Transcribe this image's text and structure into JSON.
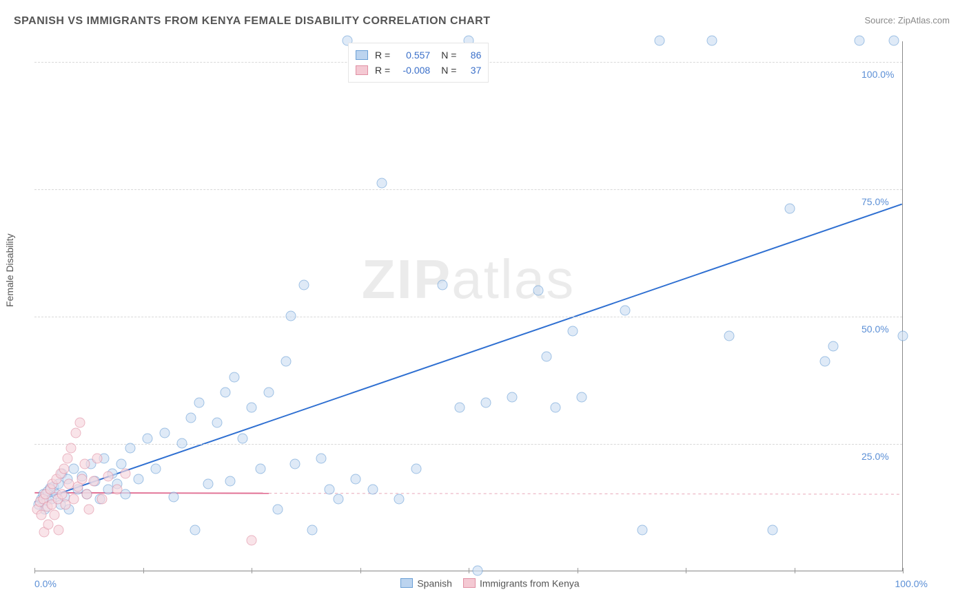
{
  "title": "SPANISH VS IMMIGRANTS FROM KENYA FEMALE DISABILITY CORRELATION CHART",
  "source_label": "Source: ",
  "source_site": "ZipAtlas.com",
  "ylabel": "Female Disability",
  "watermark_bold": "ZIP",
  "watermark_light": "atlas",
  "chart": {
    "type": "scatter",
    "xlim": [
      0,
      100
    ],
    "ylim": [
      0,
      104
    ],
    "x_tick_positions": [
      0,
      12.5,
      25,
      37.5,
      50,
      62.5,
      75,
      87.5,
      100
    ],
    "x_start_label": "0.0%",
    "x_end_label": "100.0%",
    "y_gridlines": [
      {
        "value": 25,
        "label": "25.0%"
      },
      {
        "value": 50,
        "label": "50.0%"
      },
      {
        "value": 75,
        "label": "75.0%"
      },
      {
        "value": 100,
        "label": "100.0%"
      }
    ],
    "background": "#ffffff",
    "grid_color": "#d8d8d8",
    "marker_radius": 7.5,
    "series": [
      {
        "name": "Spanish",
        "r_value": "0.557",
        "n_value": "86",
        "marker_fill": "#cfe0f4",
        "marker_stroke": "#6a9fd6",
        "swatch_fill": "#bcd4ef",
        "swatch_stroke": "#6a9fd6",
        "trend": {
          "x1": 0,
          "y1": 13.5,
          "x2": 100,
          "y2": 72,
          "color": "#2e6fd1",
          "width": 2,
          "dash": null
        },
        "points": [
          [
            0.5,
            13
          ],
          [
            0.8,
            14
          ],
          [
            1,
            15
          ],
          [
            1.2,
            12
          ],
          [
            1.4,
            13.8
          ],
          [
            1.5,
            15.5
          ],
          [
            1.8,
            16.2
          ],
          [
            2,
            14
          ],
          [
            2.2,
            16.5
          ],
          [
            2.5,
            15
          ],
          [
            2.8,
            17
          ],
          [
            3,
            13
          ],
          [
            3.2,
            19
          ],
          [
            3.5,
            14.5
          ],
          [
            3.8,
            18
          ],
          [
            4,
            12
          ],
          [
            4.5,
            20
          ],
          [
            5,
            16
          ],
          [
            5.5,
            18.5
          ],
          [
            6,
            15
          ],
          [
            6.5,
            21
          ],
          [
            7,
            17.5
          ],
          [
            7.5,
            14
          ],
          [
            8,
            22
          ],
          [
            8.5,
            16
          ],
          [
            9,
            19
          ],
          [
            9.5,
            17
          ],
          [
            10,
            21
          ],
          [
            10.5,
            15
          ],
          [
            11,
            24
          ],
          [
            12,
            18
          ],
          [
            13,
            26
          ],
          [
            14,
            20
          ],
          [
            15,
            27
          ],
          [
            16,
            14.5
          ],
          [
            17,
            25
          ],
          [
            18,
            30
          ],
          [
            18.5,
            8
          ],
          [
            19,
            33
          ],
          [
            20,
            17
          ],
          [
            21,
            29
          ],
          [
            22,
            35
          ],
          [
            22.5,
            17.5
          ],
          [
            23,
            38
          ],
          [
            24,
            26
          ],
          [
            25,
            32
          ],
          [
            26,
            20
          ],
          [
            27,
            35
          ],
          [
            28,
            12
          ],
          [
            29,
            41
          ],
          [
            29.5,
            50
          ],
          [
            30,
            21
          ],
          [
            31,
            56
          ],
          [
            32,
            8
          ],
          [
            33,
            22
          ],
          [
            34,
            16
          ],
          [
            35,
            14
          ],
          [
            36,
            104
          ],
          [
            37,
            18
          ],
          [
            39,
            16
          ],
          [
            40,
            76
          ],
          [
            42,
            14
          ],
          [
            44,
            20
          ],
          [
            47,
            56
          ],
          [
            49,
            32
          ],
          [
            50,
            104
          ],
          [
            51,
            0
          ],
          [
            52,
            33
          ],
          [
            55,
            34
          ],
          [
            58,
            55
          ],
          [
            59,
            42
          ],
          [
            60,
            32
          ],
          [
            62,
            47
          ],
          [
            63,
            34
          ],
          [
            68,
            51
          ],
          [
            70,
            8
          ],
          [
            72,
            104
          ],
          [
            78,
            104
          ],
          [
            80,
            46
          ],
          [
            85,
            8
          ],
          [
            87,
            71
          ],
          [
            91,
            41
          ],
          [
            92,
            44
          ],
          [
            95,
            104
          ],
          [
            99,
            104
          ],
          [
            100,
            46
          ]
        ]
      },
      {
        "name": "Immigrants from Kenya",
        "r_value": "-0.008",
        "n_value": "37",
        "marker_fill": "#f7d7de",
        "marker_stroke": "#e08fa3",
        "swatch_fill": "#f4c9d3",
        "swatch_stroke": "#e08fa3",
        "trend_solid": {
          "x1": 0,
          "y1": 15.3,
          "x2": 27,
          "y2": 15.2,
          "color": "#e17094",
          "width": 2
        },
        "trend_dash": {
          "x1": 27,
          "y1": 15.2,
          "x2": 100,
          "y2": 15.0,
          "color": "#e8a6b8",
          "width": 1,
          "dash": "4 4"
        },
        "points": [
          [
            0.3,
            12
          ],
          [
            0.6,
            13.5
          ],
          [
            0.8,
            11
          ],
          [
            1,
            14
          ],
          [
            1.1,
            7.5
          ],
          [
            1.3,
            15
          ],
          [
            1.5,
            12.5
          ],
          [
            1.6,
            9
          ],
          [
            1.8,
            16
          ],
          [
            2,
            13
          ],
          [
            2.1,
            17
          ],
          [
            2.3,
            11
          ],
          [
            2.5,
            18
          ],
          [
            2.7,
            14
          ],
          [
            2.8,
            8
          ],
          [
            3,
            19
          ],
          [
            3.2,
            15
          ],
          [
            3.4,
            20
          ],
          [
            3.6,
            13
          ],
          [
            3.8,
            22
          ],
          [
            4,
            17
          ],
          [
            4.2,
            24
          ],
          [
            4.5,
            14
          ],
          [
            4.8,
            27
          ],
          [
            5,
            16.5
          ],
          [
            5.2,
            29
          ],
          [
            5.5,
            18
          ],
          [
            5.8,
            21
          ],
          [
            6,
            15
          ],
          [
            6.3,
            12
          ],
          [
            6.8,
            17.5
          ],
          [
            7.2,
            22
          ],
          [
            7.8,
            14
          ],
          [
            8.5,
            18.5
          ],
          [
            9.5,
            16
          ],
          [
            10.5,
            19
          ],
          [
            25,
            6
          ]
        ]
      }
    ],
    "legend_top": {
      "r_label": "R =",
      "n_label": "N ="
    },
    "legend_bottom": [
      {
        "label": "Spanish",
        "series": 0
      },
      {
        "label": "Immigrants from Kenya",
        "series": 1
      }
    ]
  }
}
